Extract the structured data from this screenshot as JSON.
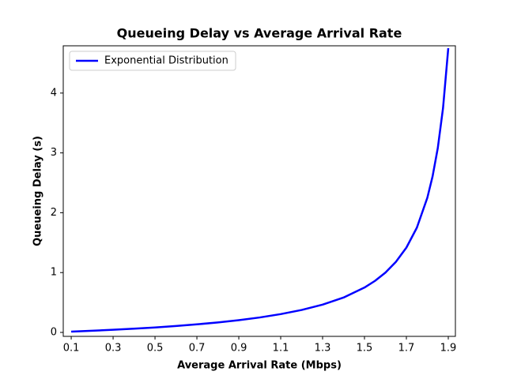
{
  "chart_data": {
    "type": "line",
    "title": "Queueing Delay vs Average Arrival Rate",
    "x_label": "Average Arrival Rate (Mbps)",
    "y_label": "Queueing Delay (s)",
    "x": [
      0.1,
      0.2,
      0.3,
      0.4,
      0.5,
      0.6,
      0.7,
      0.8,
      0.9,
      1.0,
      1.1,
      1.2,
      1.3,
      1.4,
      1.5,
      1.55,
      1.6,
      1.65,
      1.7,
      1.75,
      1.8,
      1.825,
      1.85,
      1.875,
      1.9
    ],
    "series": [
      {
        "name": "Exponential Distribution",
        "color": "#0000ff",
        "values": [
          0.013,
          0.028,
          0.044,
          0.063,
          0.083,
          0.107,
          0.135,
          0.167,
          0.205,
          0.25,
          0.306,
          0.375,
          0.464,
          0.583,
          0.75,
          0.861,
          1.0,
          1.179,
          1.417,
          1.75,
          2.25,
          2.607,
          3.083,
          3.75,
          4.75
        ]
      }
    ],
    "xlim": [
      0.062,
      1.934
    ],
    "ylim": [
      -0.066,
      4.79
    ],
    "xticks": [
      0.1,
      0.3,
      0.5,
      0.7,
      0.9,
      1.1,
      1.3,
      1.5,
      1.7,
      1.9
    ],
    "yticks": [
      0,
      1,
      2,
      3,
      4
    ],
    "grid": false,
    "legend": "upper left"
  }
}
